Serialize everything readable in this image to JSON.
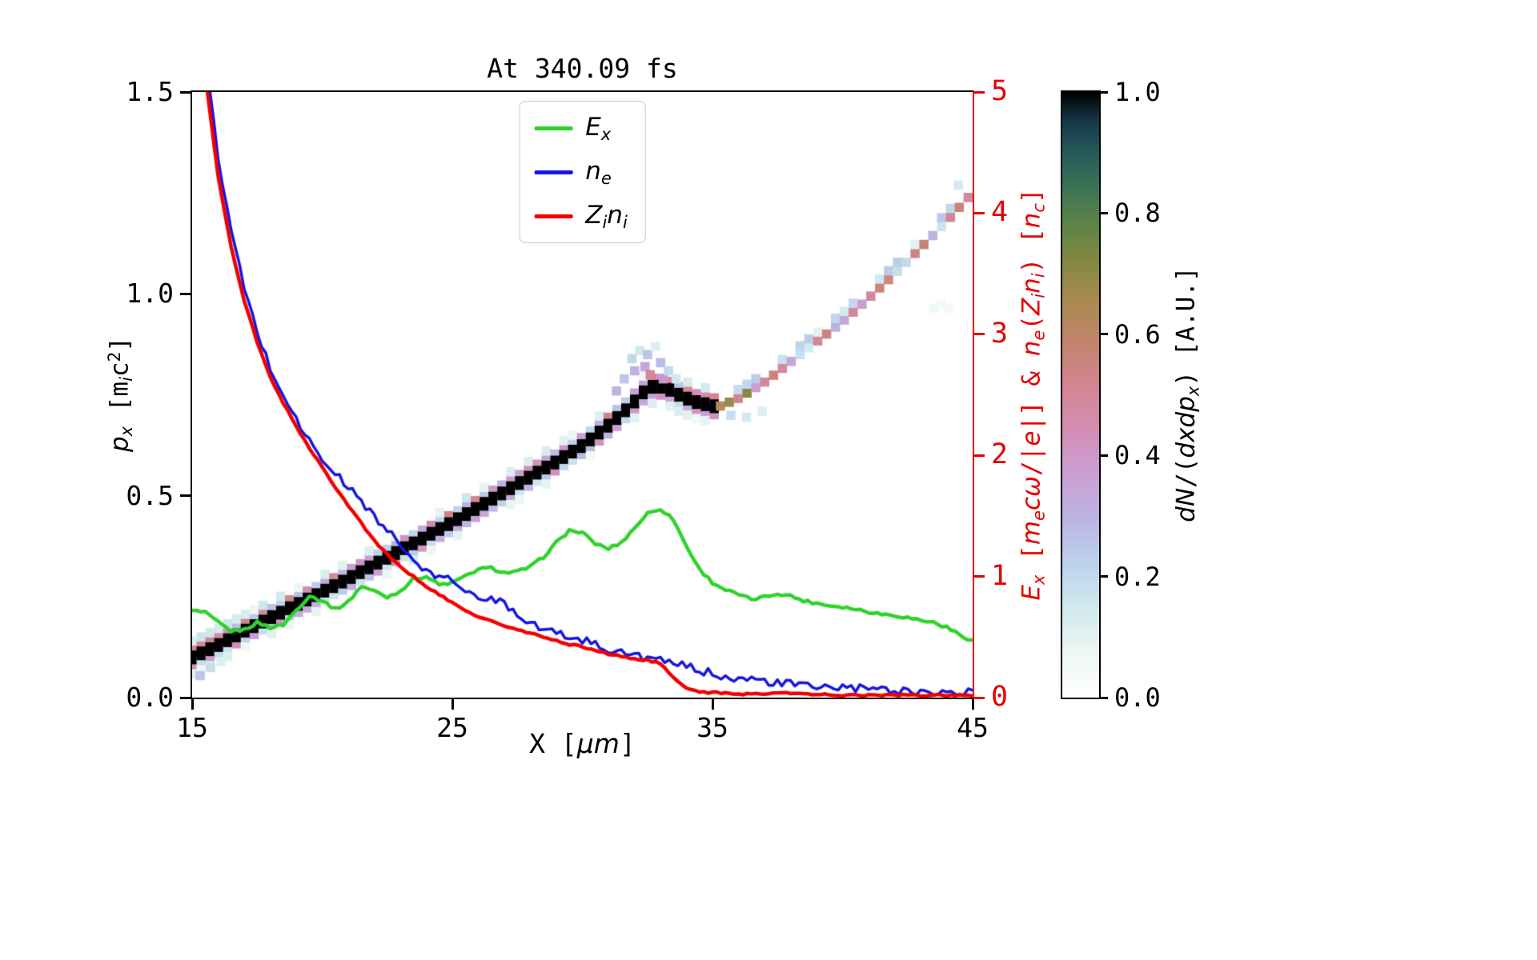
{
  "figure": {
    "background": "#ffffff"
  },
  "chart_data": {
    "type": "line+heatmap",
    "title": "At 340.09 fs",
    "x_axis": {
      "min": 15,
      "max": 45,
      "tick_values": [
        15,
        25,
        35,
        45
      ],
      "tick_labels": [
        "15",
        "25",
        "35",
        "45"
      ],
      "label_segments": [
        {
          "t": "X ["
        },
        {
          "t": "μ",
          "i": 1
        },
        {
          "t": "m",
          "i": 1
        },
        {
          "t": "]"
        }
      ]
    },
    "y_left": {
      "min": 0,
      "max": 1.5,
      "tick_values": [
        0,
        0.5,
        1.0,
        1.5
      ],
      "tick_labels": [
        "0.0",
        "0.5",
        "1.0",
        "1.5"
      ],
      "label_segments": [
        {
          "t": "p",
          "i": 1
        },
        {
          "t": "x",
          "i": 1,
          "b": 1
        },
        {
          "t": " [m"
        },
        {
          "t": "i",
          "i": 1,
          "b": 1
        },
        {
          "t": "c"
        },
        {
          "t": "2",
          "p": 1
        },
        {
          "t": "]"
        }
      ]
    },
    "y_right": {
      "min": 0,
      "max": 5,
      "color": "#e60000",
      "tick_values": [
        0,
        1,
        2,
        3,
        4,
        5
      ],
      "tick_labels": [
        "0",
        "1",
        "2",
        "3",
        "4",
        "5"
      ],
      "label_segments": [
        {
          "t": "E",
          "i": 1
        },
        {
          "t": "x",
          "i": 1,
          "b": 1
        },
        {
          "t": " ["
        },
        {
          "t": "m",
          "i": 1
        },
        {
          "t": "e",
          "i": 1,
          "b": 1
        },
        {
          "t": "c",
          "i": 1
        },
        {
          "t": "ω",
          "i": 1
        },
        {
          "t": "/|"
        },
        {
          "t": "e",
          "i": 1
        },
        {
          "t": "|] & "
        },
        {
          "t": "n",
          "i": 1
        },
        {
          "t": "e",
          "i": 1,
          "b": 1
        },
        {
          "t": "("
        },
        {
          "t": "Z",
          "i": 1
        },
        {
          "t": "i",
          "i": 1,
          "b": 1
        },
        {
          "t": "n",
          "i": 1
        },
        {
          "t": "i",
          "i": 1,
          "b": 1
        },
        {
          "t": ") ["
        },
        {
          "t": "n",
          "i": 1
        },
        {
          "t": "c",
          "b": 1,
          "i": 1
        },
        {
          "t": "]"
        }
      ]
    },
    "series": [
      {
        "name": "Ex",
        "label_segments": [
          {
            "t": "E",
            "i": 1
          },
          {
            "t": "x",
            "i": 1,
            "b": 1
          }
        ],
        "color": "#2fd32b",
        "width": 4.5,
        "axis": "right",
        "x0": 15,
        "dx": 0.5,
        "noise": 0.012,
        "values": [
          0.72,
          0.7,
          0.62,
          0.55,
          0.56,
          0.62,
          0.58,
          0.6,
          0.72,
          0.84,
          0.8,
          0.73,
          0.79,
          0.92,
          0.88,
          0.83,
          0.88,
          0.98,
          1.0,
          0.93,
          0.95,
          1.0,
          1.06,
          1.07,
          1.03,
          1.04,
          1.08,
          1.16,
          1.28,
          1.38,
          1.36,
          1.27,
          1.23,
          1.28,
          1.4,
          1.52,
          1.56,
          1.47,
          1.25,
          1.06,
          0.95,
          0.89,
          0.85,
          0.81,
          0.83,
          0.86,
          0.84,
          0.8,
          0.78,
          0.76,
          0.75,
          0.73,
          0.71,
          0.69,
          0.68,
          0.66,
          0.64,
          0.62,
          0.58,
          0.52,
          0.47
        ]
      },
      {
        "name": "ne",
        "label_segments": [
          {
            "t": "n",
            "i": 1
          },
          {
            "t": "e",
            "i": 1,
            "b": 1
          }
        ],
        "color": "#1616e0",
        "width": 3.5,
        "axis": "right",
        "x0": 15,
        "dx": 0.5,
        "noise": 0.035,
        "values": [
          6.8,
          5.3,
          4.45,
          3.85,
          3.38,
          3.02,
          2.72,
          2.5,
          2.3,
          2.12,
          1.96,
          1.85,
          1.74,
          1.62,
          1.5,
          1.38,
          1.26,
          1.13,
          1.03,
          1.0,
          0.97,
          0.9,
          0.79,
          0.83,
          0.78,
          0.7,
          0.62,
          0.57,
          0.53,
          0.5,
          0.48,
          0.44,
          0.4,
          0.37,
          0.35,
          0.33,
          0.3,
          0.28,
          0.26,
          0.22,
          0.2,
          0.18,
          0.16,
          0.145,
          0.13,
          0.12,
          0.11,
          0.1,
          0.09,
          0.085,
          0.08,
          0.075,
          0.07,
          0.065,
          0.06,
          0.055,
          0.05,
          0.05,
          0.045,
          0.04,
          0.04
        ]
      },
      {
        "name": "Zini",
        "label_segments": [
          {
            "t": "Z",
            "i": 1
          },
          {
            "t": "i",
            "i": 1,
            "b": 1
          },
          {
            "t": "n",
            "i": 1
          },
          {
            "t": "i",
            "i": 1,
            "b": 1
          }
        ],
        "color": "#f20000",
        "width": 4.5,
        "axis": "right",
        "x0": 15,
        "dx": 0.5,
        "noise": 0.008,
        "values": [
          6.8,
          5.15,
          4.3,
          3.72,
          3.28,
          2.93,
          2.65,
          2.43,
          2.24,
          2.06,
          1.9,
          1.74,
          1.59,
          1.44,
          1.3,
          1.18,
          1.08,
          1.0,
          0.92,
          0.85,
          0.78,
          0.72,
          0.67,
          0.63,
          0.59,
          0.56,
          0.53,
          0.5,
          0.47,
          0.44,
          0.42,
          0.39,
          0.36,
          0.34,
          0.32,
          0.31,
          0.28,
          0.16,
          0.08,
          0.05,
          0.04,
          0.035,
          0.03,
          0.03,
          0.035,
          0.04,
          0.035,
          0.03,
          0.025,
          0.025,
          0.02,
          0.02,
          0.02,
          0.02,
          0.02,
          0.02,
          0.02,
          0.02,
          0.02,
          0.02,
          0.02
        ]
      }
    ],
    "colorbar": {
      "label_segments": [
        {
          "t": "d",
          "i": 1
        },
        {
          "t": "N",
          "i": 1
        },
        {
          "t": "/("
        },
        {
          "t": "d",
          "i": 1
        },
        {
          "t": "x",
          "i": 1
        },
        {
          "t": "d",
          "i": 1
        },
        {
          "t": "p",
          "i": 1
        },
        {
          "t": "x",
          "i": 1,
          "b": 1
        },
        {
          "t": ") [A.U.]"
        }
      ],
      "min": 0,
      "max": 1,
      "tick_values": [
        0,
        0.2,
        0.4,
        0.6,
        0.8,
        1.0
      ],
      "tick_labels": [
        "0.0",
        "0.2",
        "0.4",
        "0.6",
        "0.8",
        "1.0"
      ],
      "stops": [
        [
          0,
          "#ffffff"
        ],
        [
          0.07,
          "#eef8f2"
        ],
        [
          0.15,
          "#cfe9ee"
        ],
        [
          0.22,
          "#bcd2ec"
        ],
        [
          0.3,
          "#bdb2e2"
        ],
        [
          0.38,
          "#cc9cd0"
        ],
        [
          0.45,
          "#d48cb0"
        ],
        [
          0.52,
          "#d28590"
        ],
        [
          0.58,
          "#c48470"
        ],
        [
          0.65,
          "#ab8a52"
        ],
        [
          0.72,
          "#838940"
        ],
        [
          0.78,
          "#5d8347"
        ],
        [
          0.84,
          "#3d7455"
        ],
        [
          0.9,
          "#265a5a"
        ],
        [
          0.95,
          "#17394a"
        ],
        [
          1,
          "#000000"
        ]
      ]
    },
    "phase_space": {
      "cell_w": 0.34,
      "cell_h": 0.022,
      "main_range": [
        15,
        35.2
      ],
      "faint_range": [
        35.3,
        44.9
      ],
      "main_band": [
        [
          15,
          0.1
        ],
        [
          16,
          0.13
        ],
        [
          17,
          0.165
        ],
        [
          18,
          0.198
        ],
        [
          19,
          0.23
        ],
        [
          20,
          0.262
        ],
        [
          21,
          0.295
        ],
        [
          22,
          0.33
        ],
        [
          23,
          0.365
        ],
        [
          24,
          0.4
        ],
        [
          25,
          0.435
        ],
        [
          26,
          0.472
        ],
        [
          27,
          0.51
        ],
        [
          28,
          0.548
        ],
        [
          29,
          0.585
        ],
        [
          30,
          0.625
        ],
        [
          31,
          0.675
        ],
        [
          31.8,
          0.72
        ],
        [
          32.3,
          0.755
        ],
        [
          32.8,
          0.775
        ],
        [
          33.3,
          0.765
        ],
        [
          33.8,
          0.747
        ],
        [
          34.4,
          0.732
        ],
        [
          35.2,
          0.72
        ]
      ],
      "faint_band": [
        [
          35.2,
          0.72
        ],
        [
          36,
          0.742
        ],
        [
          37,
          0.782
        ],
        [
          38,
          0.832
        ],
        [
          39,
          0.882
        ],
        [
          40,
          0.932
        ],
        [
          41,
          0.99
        ],
        [
          42,
          1.05
        ],
        [
          43,
          1.115
        ],
        [
          44,
          1.18
        ],
        [
          44.9,
          1.245
        ]
      ],
      "extras": [
        [
          15.3,
          0.055,
          0.25
        ],
        [
          15.7,
          0.075,
          0.18
        ],
        [
          16.1,
          0.09,
          0.12
        ],
        [
          35.7,
          0.7,
          0.18
        ],
        [
          36.3,
          0.695,
          0.14
        ],
        [
          36.9,
          0.71,
          0.12
        ],
        [
          43.5,
          0.965,
          0.06
        ],
        [
          43.8,
          0.975,
          0.05
        ],
        [
          44.1,
          0.965,
          0.05
        ],
        [
          44.45,
          1.27,
          0.14
        ],
        [
          31.3,
          0.76,
          0.3
        ],
        [
          31.6,
          0.79,
          0.25
        ],
        [
          31.9,
          0.84,
          0.2
        ],
        [
          32,
          0.81,
          0.3
        ],
        [
          32.2,
          0.86,
          0.15
        ],
        [
          32.4,
          0.82,
          0.35
        ],
        [
          32.5,
          0.85,
          0.25
        ],
        [
          32.6,
          0.8,
          0.5
        ],
        [
          32.8,
          0.87,
          0.12
        ],
        [
          33,
          0.83,
          0.28
        ],
        [
          33.1,
          0.79,
          0.4
        ],
        [
          33.3,
          0.81,
          0.2
        ],
        [
          33.6,
          0.79,
          0.15
        ]
      ]
    }
  }
}
